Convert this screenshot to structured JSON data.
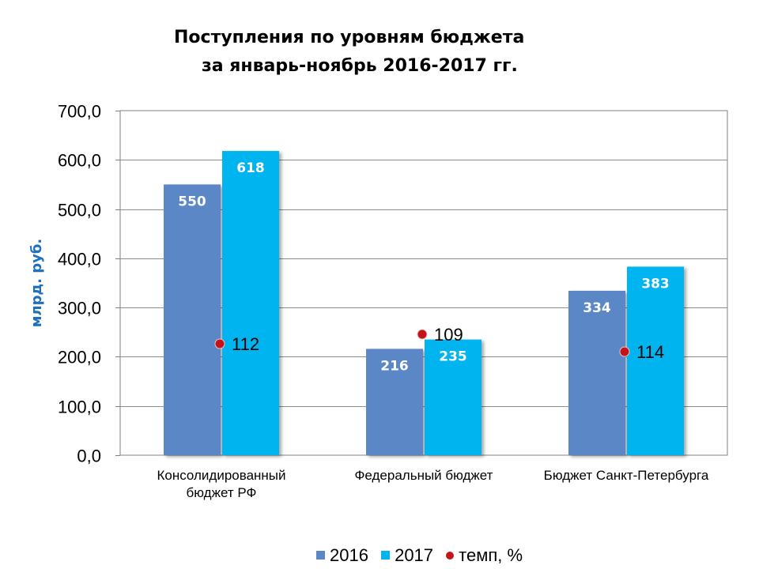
{
  "chart_data": {
    "type": "bar",
    "title_line1": "Поступления  по уровням бюджета",
    "title_line2": "за январь-ноябрь  2016-2017 гг.",
    "ylabel": "млрд. руб.",
    "ylim": [
      0,
      700
    ],
    "yticks": [
      "0,0",
      "100,0",
      "200,0",
      "300,0",
      "400,0",
      "500,0",
      "600,0",
      "700,0"
    ],
    "grid": true,
    "legend_position": "bottom",
    "categories": [
      [
        "Консолидированный",
        "бюджет РФ"
      ],
      [
        "Федеральный бюджет"
      ],
      [
        "Бюджет Санкт-Петербурга"
      ]
    ],
    "series": [
      {
        "name": "2016",
        "color": "#5b87c7",
        "values": [
          550,
          216,
          334
        ],
        "labels": [
          "550",
          "216",
          "334"
        ]
      },
      {
        "name": "2017",
        "color": "#00b4f0",
        "values": [
          618,
          235,
          383
        ],
        "labels": [
          "618",
          "235",
          "383"
        ]
      }
    ],
    "rate": {
      "name": "темп, %",
      "color": "#c0151b",
      "labels": [
        "112",
        "109",
        "114"
      ],
      "y_positions": [
        435,
        423,
        445
      ]
    }
  }
}
